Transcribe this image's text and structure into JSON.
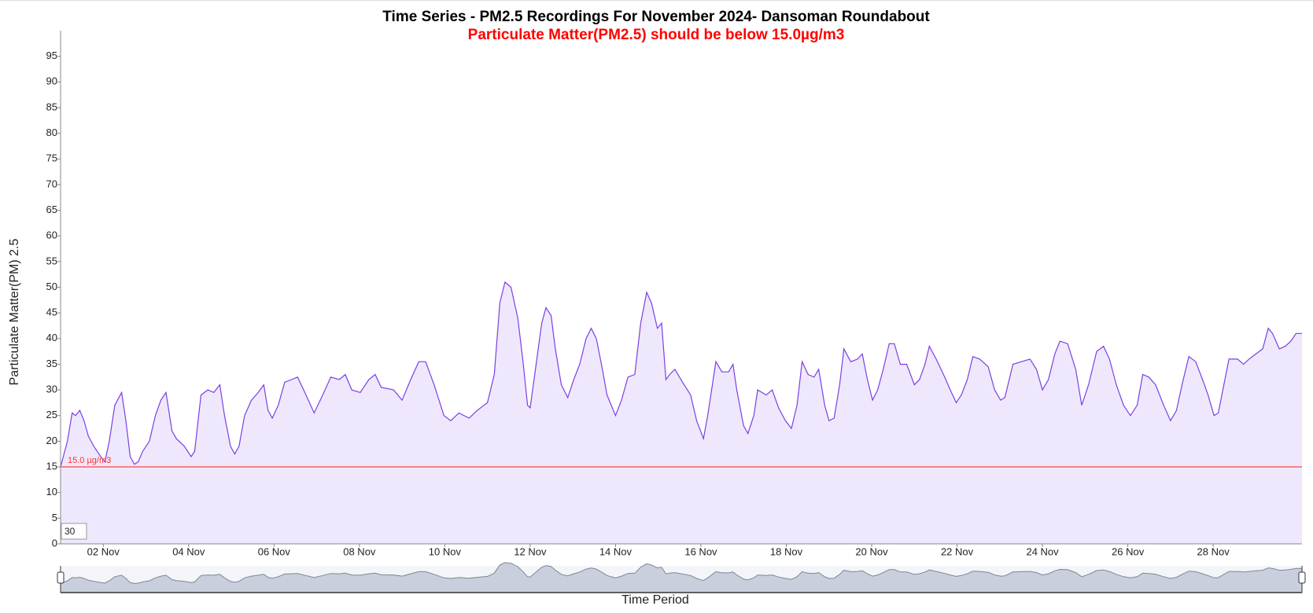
{
  "chart_data": {
    "type": "line",
    "title": "Time Series - PM2.5 Recordings For November 2024- Dansoman Roundabout",
    "subtitle": "Particulate Matter(PM2.5) should be below 15.0µg/m3",
    "y_label": "Particulate Matter(PM) 2.5",
    "x_label": "Time Period",
    "color": "#7b3fe4",
    "fill_color": "#efe8fd",
    "roll_period": 30,
    "threshold": {
      "value": 15,
      "label": "15.0 µg/m3",
      "color": "#ff3030"
    },
    "xlim": [
      1,
      30.08
    ],
    "ylim": [
      0,
      100
    ],
    "xticks": [
      {
        "value": 2,
        "label": "02 Nov"
      },
      {
        "value": 4,
        "label": "04 Nov"
      },
      {
        "value": 6,
        "label": "06 Nov"
      },
      {
        "value": 8,
        "label": "08 Nov"
      },
      {
        "value": 10,
        "label": "10 Nov"
      },
      {
        "value": 12,
        "label": "12 Nov"
      },
      {
        "value": 14,
        "label": "14 Nov"
      },
      {
        "value": 16,
        "label": "16 Nov"
      },
      {
        "value": 18,
        "label": "18 Nov"
      },
      {
        "value": 20,
        "label": "20 Nov"
      },
      {
        "value": 22,
        "label": "22 Nov"
      },
      {
        "value": 24,
        "label": "24 Nov"
      },
      {
        "value": 26,
        "label": "26 Nov"
      },
      {
        "value": 28,
        "label": "28 Nov"
      }
    ],
    "yticks": [
      0,
      5,
      10,
      15,
      20,
      25,
      30,
      35,
      40,
      45,
      50,
      55,
      60,
      65,
      70,
      75,
      80,
      85,
      90,
      95
    ],
    "x": [
      1.0,
      1.16,
      1.27,
      1.35,
      1.45,
      1.55,
      1.65,
      1.78,
      1.94,
      2.04,
      2.14,
      2.27,
      2.43,
      2.53,
      2.63,
      2.73,
      2.82,
      2.92,
      3.08,
      3.22,
      3.35,
      3.47,
      3.61,
      3.71,
      3.9,
      4.06,
      4.14,
      4.29,
      4.45,
      4.59,
      4.73,
      4.84,
      4.98,
      5.08,
      5.18,
      5.31,
      5.47,
      5.63,
      5.76,
      5.86,
      5.96,
      6.1,
      6.25,
      6.41,
      6.55,
      6.75,
      6.94,
      7.14,
      7.33,
      7.53,
      7.67,
      7.82,
      8.02,
      8.22,
      8.37,
      8.51,
      8.8,
      9.0,
      9.2,
      9.39,
      9.55,
      9.75,
      9.98,
      10.14,
      10.33,
      10.57,
      10.76,
      11.0,
      11.16,
      11.29,
      11.41,
      11.55,
      11.71,
      11.84,
      11.94,
      12.0,
      12.14,
      12.27,
      12.37,
      12.49,
      12.59,
      12.73,
      12.88,
      13.02,
      13.16,
      13.31,
      13.43,
      13.55,
      13.67,
      13.8,
      14.0,
      14.14,
      14.29,
      14.45,
      14.59,
      14.73,
      14.84,
      14.98,
      15.08,
      15.18,
      15.27,
      15.39,
      15.57,
      15.76,
      15.9,
      16.06,
      16.16,
      16.35,
      16.49,
      16.65,
      16.75,
      16.84,
      17.0,
      17.1,
      17.24,
      17.33,
      17.53,
      17.67,
      17.82,
      17.98,
      18.12,
      18.25,
      18.37,
      18.51,
      18.65,
      18.76,
      18.9,
      19.0,
      19.12,
      19.25,
      19.35,
      19.51,
      19.67,
      19.78,
      19.9,
      20.02,
      20.14,
      20.27,
      20.41,
      20.53,
      20.67,
      20.82,
      21.0,
      21.12,
      21.25,
      21.35,
      21.51,
      21.71,
      21.84,
      21.98,
      22.1,
      22.24,
      22.37,
      22.53,
      22.73,
      22.88,
      23.02,
      23.12,
      23.31,
      23.51,
      23.71,
      23.86,
      24.0,
      24.14,
      24.29,
      24.41,
      24.59,
      24.78,
      24.92,
      25.08,
      25.27,
      25.43,
      25.57,
      25.73,
      25.9,
      26.06,
      26.22,
      26.35,
      26.49,
      26.65,
      26.84,
      27.0,
      27.14,
      27.27,
      27.43,
      27.59,
      27.75,
      27.88,
      28.02,
      28.12,
      28.25,
      28.37,
      28.57,
      28.71,
      28.84,
      29.0,
      29.16,
      29.29,
      29.39,
      29.55,
      29.69,
      29.82,
      29.94,
      30.08
    ],
    "values": [
      15,
      20,
      25.5,
      25,
      26,
      24,
      21,
      19,
      17,
      16,
      20,
      27,
      29.5,
      24,
      17,
      15.5,
      16,
      18,
      20,
      25,
      28,
      29.5,
      22,
      20.5,
      19,
      17,
      18,
      29,
      30,
      29.5,
      31,
      25,
      19,
      17.5,
      19,
      25,
      28,
      29.5,
      31,
      26,
      24.5,
      27,
      31.5,
      32,
      32.5,
      29,
      25.5,
      29,
      32.5,
      32,
      33,
      30,
      29.5,
      32,
      33,
      30.5,
      30,
      28,
      32,
      35.5,
      35.5,
      31,
      25,
      24,
      25.5,
      24.5,
      26,
      27.5,
      33,
      47,
      51,
      50,
      44,
      35,
      27,
      26.5,
      35,
      43,
      46,
      44.5,
      38,
      31,
      28.5,
      32,
      35,
      40,
      42,
      40,
      35,
      29,
      25,
      28,
      32.5,
      33,
      43,
      49,
      47,
      42,
      43,
      32,
      33,
      34,
      31.5,
      29,
      24,
      20.5,
      25,
      35.5,
      33.5,
      33.5,
      35,
      30,
      23,
      21.5,
      25,
      30,
      29,
      30,
      26.5,
      24,
      22.5,
      27,
      35.5,
      33,
      32.5,
      34,
      27,
      24,
      24.5,
      31,
      38,
      35.5,
      36,
      37,
      32,
      28,
      30,
      34,
      39,
      39,
      35,
      35,
      31,
      32,
      35,
      38.5,
      36,
      32.5,
      30,
      27.5,
      29,
      32,
      36.5,
      36,
      34.5,
      30,
      28,
      28.5,
      35,
      35.5,
      36,
      34,
      30,
      32,
      37,
      39.5,
      39,
      34,
      27,
      31,
      37.5,
      38.5,
      36,
      31,
      27,
      25,
      27,
      33,
      32.5,
      31,
      27,
      24,
      26,
      31,
      36.5,
      35.5,
      32,
      29,
      25,
      25.5,
      31,
      36,
      36,
      35,
      36,
      37,
      38,
      42,
      41,
      38,
      38.5,
      39.5,
      41,
      41
    ]
  }
}
